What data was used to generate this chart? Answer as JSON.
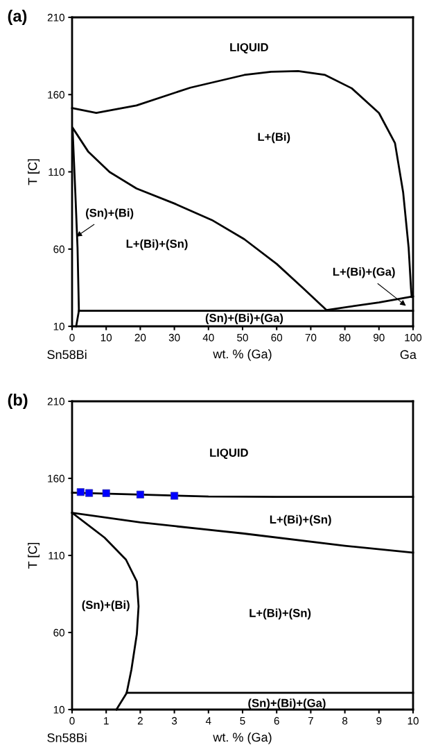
{
  "chart_data": [
    {
      "type": "line",
      "xlabel": "wt. % (Ga)",
      "ylabel": "T [C]",
      "xlim": [
        0,
        100
      ],
      "ylim": [
        10,
        210
      ],
      "xticks": [
        0,
        10,
        20,
        30,
        40,
        50,
        60,
        70,
        80,
        90,
        100
      ],
      "yticks": [
        10,
        60,
        110,
        160,
        210
      ],
      "series": [
        {
          "color": "#000000",
          "marker": "none",
          "x": [
            0,
            7.1,
            18.9,
            34.7,
            50.5,
            58.4,
            66.3,
            74.2,
            82,
            90,
            94.7,
            97.1,
            98.7,
            99.4,
            99.6
          ],
          "values": [
            151.3,
            148.1,
            153,
            164.5,
            172.7,
            174.8,
            175.2,
            172.7,
            164.1,
            148.1,
            128.6,
            96.6,
            61,
            34.4,
            29
          ]
        },
        {
          "color": "#000000",
          "marker": "none",
          "x": [
            0.2,
            4.7,
            11,
            18.9,
            30,
            41,
            50.5,
            60,
            67.9,
            74.6
          ],
          "values": [
            138.4,
            123.2,
            109.9,
            99.2,
            89.5,
            78.8,
            66.4,
            50.4,
            34.4,
            20.5
          ]
        },
        {
          "color": "#000000",
          "marker": "none",
          "x": [
            74.6,
            90,
            100
          ],
          "values": [
            20.5,
            25.5,
            29.4
          ]
        },
        {
          "color": "#000000",
          "marker": "none",
          "x": [
            2,
            100
          ],
          "values": [
            20.1,
            20.1
          ]
        },
        {
          "color": "#000000",
          "marker": "none",
          "x": [
            0.15,
            0.95,
            1.6,
            2,
            1.2
          ],
          "values": [
            137.5,
            96.6,
            61,
            20.1,
            10
          ]
        }
      ],
      "annotations": [
        "(a)",
        "Sn58Bi",
        "Ga",
        "LIQUID",
        "L+(Bi)",
        {
          "text": "(Sn)+(Bi)",
          "x": 1.2,
          "y": 68
        },
        "L+(Bi)+(Sn)",
        "L+(Bi)+(Ga)",
        "(Sn)+(Bi)+(Ga)"
      ]
    },
    {
      "type": "line",
      "xlabel": "wt. % (Ga)",
      "ylabel": "T [C]",
      "xlim": [
        0,
        10
      ],
      "ylim": [
        10,
        210
      ],
      "xticks": [
        0,
        1,
        2,
        3,
        4,
        5,
        6,
        7,
        8,
        9,
        10
      ],
      "yticks": [
        10,
        60,
        110,
        160,
        210
      ],
      "series": [
        {
          "color": "#000000",
          "marker": "none",
          "x": [
            0,
            2,
            4,
            6,
            10
          ],
          "values": [
            150.7,
            149.5,
            148.2,
            148,
            148
          ]
        },
        {
          "type": "scatter",
          "color": "#0000ff",
          "marker": "square",
          "x": [
            0.25,
            0.5,
            1,
            2,
            3
          ],
          "values": [
            151.1,
            150.5,
            150.4,
            149.5,
            148.7
          ]
        },
        {
          "color": "#000000",
          "marker": "none",
          "x": [
            0,
            2,
            5,
            8,
            10
          ],
          "values": [
            137.7,
            131.4,
            124.3,
            116.3,
            111.8
          ]
        },
        {
          "color": "#000000",
          "marker": "none",
          "x": [
            0,
            0.95,
            1.58,
            1.9,
            1.95,
            1.9,
            1.74,
            1.6,
            1.3
          ],
          "values": [
            137.7,
            121.6,
            107.3,
            93,
            77,
            59.1,
            35.9,
            20.7,
            10
          ]
        },
        {
          "color": "#000000",
          "marker": "none",
          "x": [
            1.6,
            10
          ],
          "values": [
            20.9,
            20.9
          ]
        }
      ],
      "annotations": [
        "(b)",
        "Sn58Bi",
        "LIQUID",
        "L+(Bi)+(Sn)",
        "(Sn)+(Bi)",
        "L+(Bi)+(Sn)",
        "(Sn)+(Bi)+(Ga)"
      ]
    }
  ]
}
